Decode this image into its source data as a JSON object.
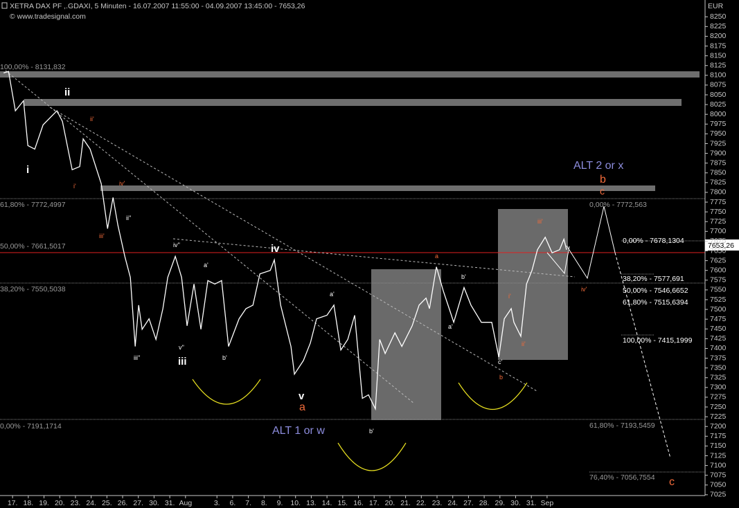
{
  "chart_data": {
    "type": "line",
    "title": "XETRA DAX PF   ,.GDAXI, 5 Minuten - 16.07.2007 11:55:00 - 04.09.2007 13:45:00 - 7653,26",
    "subtitle": "© www.tradesignal.com",
    "y_unit": "EUR",
    "last_price_label": "7653,26",
    "color": "#ffffff",
    "xlim": [
      -0.8,
      44.05
    ],
    "ylim": [
      7023,
      8293
    ],
    "xticks": [
      {
        "value": 0,
        "label": "17."
      },
      {
        "value": 1,
        "label": "18."
      },
      {
        "value": 2,
        "label": "19."
      },
      {
        "value": 3,
        "label": "20."
      },
      {
        "value": 4,
        "label": "23."
      },
      {
        "value": 5,
        "label": "24."
      },
      {
        "value": 6,
        "label": "25."
      },
      {
        "value": 7,
        "label": "26."
      },
      {
        "value": 8,
        "label": "27."
      },
      {
        "value": 9,
        "label": "30."
      },
      {
        "value": 10,
        "label": "31."
      },
      {
        "value": 11,
        "label": "Aug"
      },
      {
        "value": 13,
        "label": "3."
      },
      {
        "value": 14,
        "label": "6."
      },
      {
        "value": 15,
        "label": "7."
      },
      {
        "value": 16,
        "label": "8."
      },
      {
        "value": 17,
        "label": "9."
      },
      {
        "value": 18,
        "label": "10."
      },
      {
        "value": 19,
        "label": "13."
      },
      {
        "value": 20,
        "label": "14."
      },
      {
        "value": 21,
        "label": "15."
      },
      {
        "value": 22,
        "label": "16."
      },
      {
        "value": 23,
        "label": "17."
      },
      {
        "value": 24,
        "label": "20."
      },
      {
        "value": 25,
        "label": "21."
      },
      {
        "value": 26,
        "label": "22."
      },
      {
        "value": 27,
        "label": "23."
      },
      {
        "value": 28,
        "label": "24."
      },
      {
        "value": 29,
        "label": "27."
      },
      {
        "value": 30,
        "label": "28."
      },
      {
        "value": 31,
        "label": "29."
      },
      {
        "value": 32,
        "label": "30."
      },
      {
        "value": 33,
        "label": "31."
      },
      {
        "value": 34,
        "label": "Sep"
      }
    ],
    "yticks": [
      7025,
      7050,
      7075,
      7100,
      7125,
      7150,
      7175,
      7200,
      7225,
      7250,
      7275,
      7300,
      7325,
      7350,
      7375,
      7400,
      7425,
      7450,
      7475,
      7500,
      7525,
      7550,
      7575,
      7600,
      7625,
      7650,
      7675,
      7700,
      7725,
      7750,
      7775,
      7800,
      7825,
      7850,
      7875,
      7900,
      7925,
      7950,
      7975,
      8000,
      8025,
      8050,
      8075,
      8100,
      8125,
      8150,
      8175,
      8200,
      8225,
      8250
    ],
    "x": [
      -0.57,
      -0.26,
      0.18,
      0.7,
      0.97,
      1.41,
      1.94,
      2.82,
      3.17,
      3.79,
      4.27,
      4.49,
      4.93,
      5.64,
      6.04,
      6.39,
      6.7,
      7.14,
      7.49,
      7.8,
      8.02,
      8.24,
      8.68,
      9.12,
      9.56,
      9.87,
      10.35,
      10.75,
      11.1,
      11.54,
      11.98,
      12.42,
      12.86,
      13.3,
      13.74,
      14.41,
      14.85,
      15.29,
      15.73,
      16.39,
      16.65,
      17.05,
      17.71,
      17.93,
      18.5,
      18.94,
      19.34,
      20.0,
      20.44,
      20.88,
      21.32,
      21.76,
      22.11,
      22.25,
      22.64,
      23.08,
      23.35,
      23.7,
      24.32,
      24.76,
      25.42,
      25.86,
      26.3,
      26.52,
      26.96,
      27.4,
      27.84,
      28.06,
      28.72,
      29.16,
      29.82,
      30.48,
      30.93,
      31.28,
      31.72,
      31.89,
      32.33,
      32.69,
      33.04,
      33.39,
      33.88,
      34.32,
      34.8,
      35.07,
      35.24
    ],
    "values": [
      8106,
      8110,
      8009,
      8035,
      7920,
      7911,
      7973,
      8009,
      7982,
      7858,
      7866,
      7937,
      7911,
      7822,
      7707,
      7787,
      7716,
      7636,
      7582,
      7405,
      7511,
      7449,
      7476,
      7423,
      7502,
      7582,
      7636,
      7582,
      7458,
      7565,
      7449,
      7574,
      7565,
      7574,
      7405,
      7476,
      7502,
      7511,
      7591,
      7600,
      7627,
      7511,
      7405,
      7334,
      7369,
      7414,
      7476,
      7485,
      7511,
      7396,
      7423,
      7485,
      7334,
      7272,
      7281,
      7245,
      7423,
      7387,
      7440,
      7405,
      7458,
      7511,
      7529,
      7502,
      7609,
      7547,
      7494,
      7467,
      7556,
      7511,
      7467,
      7467,
      7378,
      7476,
      7502,
      7467,
      7431,
      7565,
      7600,
      7653,
      7685,
      7645,
      7653,
      7680,
      7653
    ],
    "annotations": [
      "ii",
      "i",
      "i'",
      "ii'",
      "iv'",
      "iii'",
      "ii''",
      "iii''",
      "iv''",
      "v''",
      "iii",
      "a'",
      "b'",
      "iv",
      "v",
      "a",
      "a'",
      "b'",
      "a",
      "b'",
      "a'",
      "c'",
      "b",
      "i'",
      "ii'",
      "iii'",
      "iv'",
      "ALT 1 or w",
      "ALT 2 or x",
      "b",
      "c",
      "c"
    ],
    "fib_labels": [
      "100,00% - 8131,832",
      "61,80% - 7772,4997",
      "50,00% - 7661,5017",
      "38,20% - 7550,5038",
      "0,00% - 7191,1714",
      "0,00% - 7772,563",
      "0,00% - 7678,1304",
      "38,20% - 7577,691",
      "50,00% - 7546,6652",
      "61,80% - 7515,6394",
      "100,00% - 7415,1999",
      "61,80% - 7193,5459",
      "76,40% - 7056,7554"
    ]
  }
}
